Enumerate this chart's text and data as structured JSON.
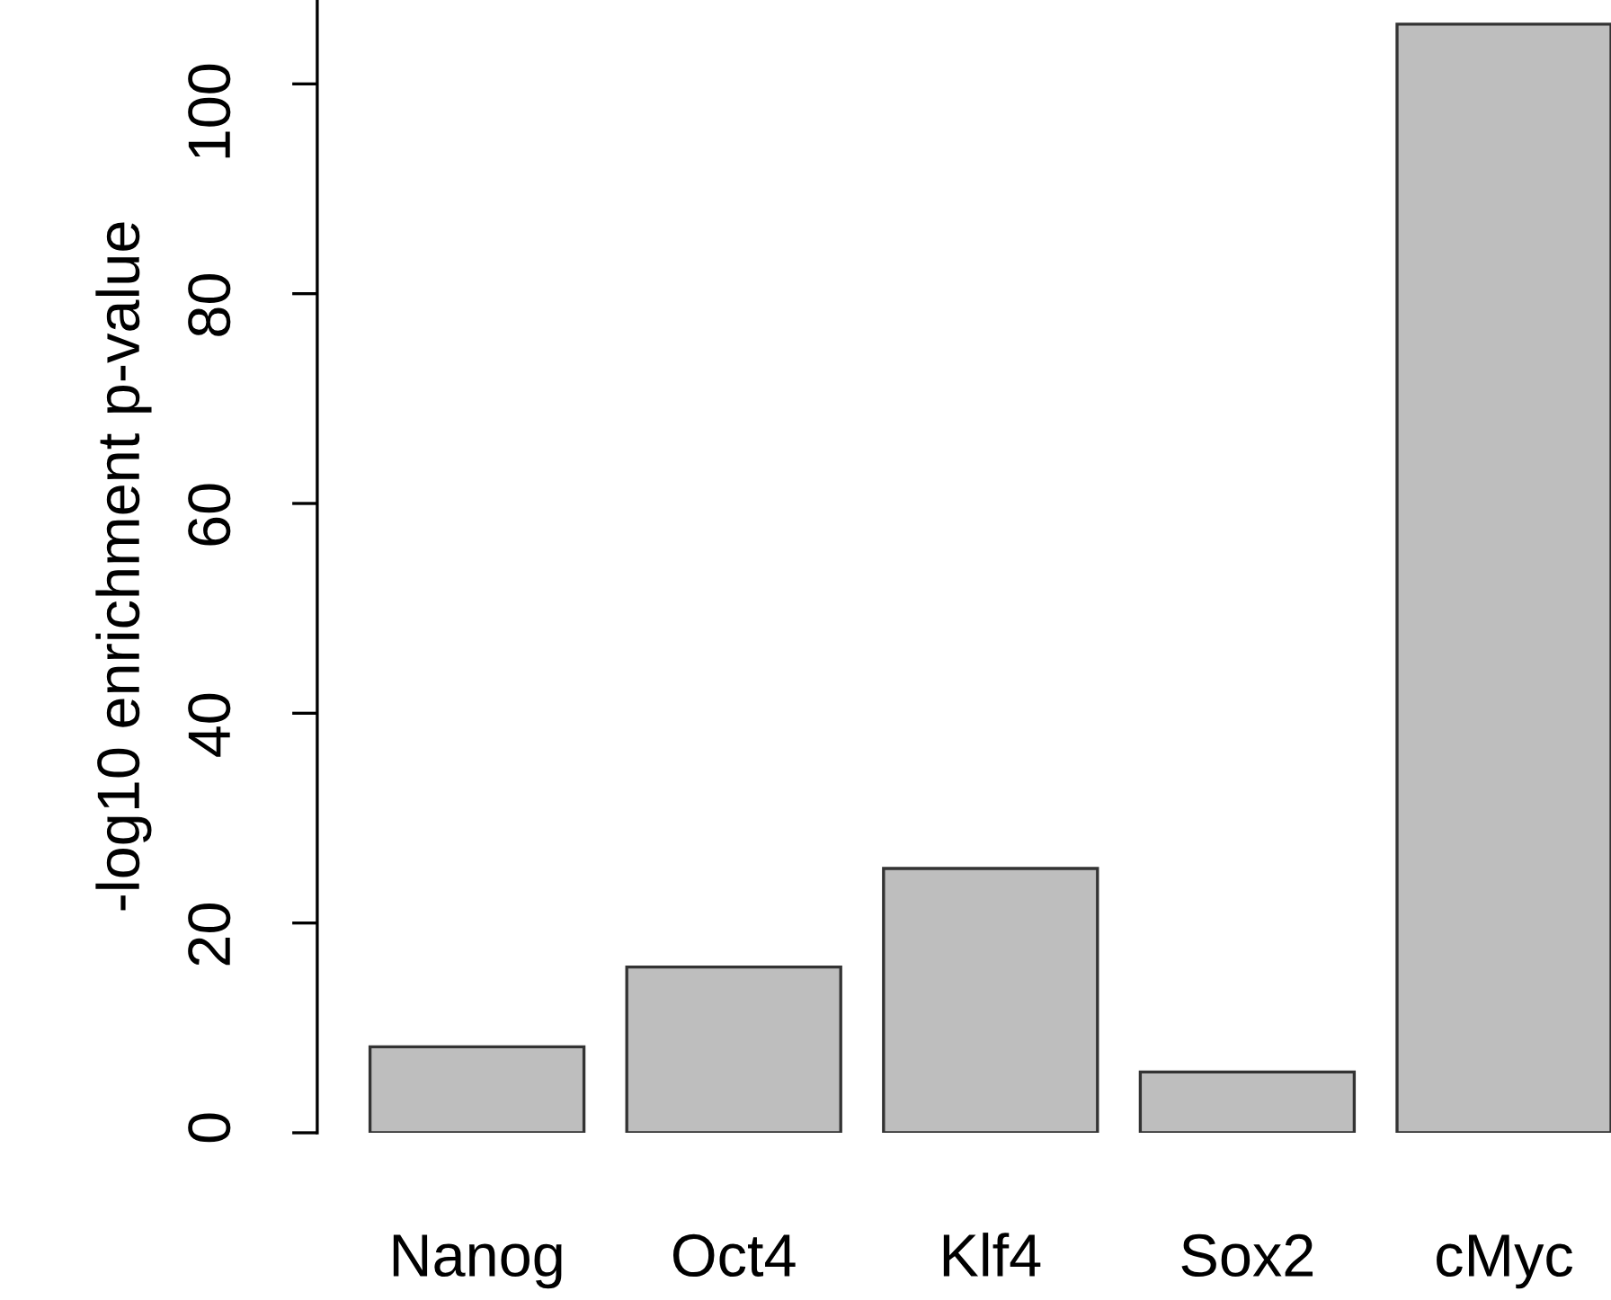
{
  "chart_data": {
    "type": "bar",
    "ylabel": "-log10 enrichment p-value",
    "categories": [
      "Nanog",
      "Oct4",
      "Klf4",
      "Sox2",
      "cMyc"
    ],
    "values": [
      8.2,
      15.8,
      25.2,
      5.8,
      105.7
    ],
    "color": "#bebebe",
    "ylim": [
      0,
      108
    ],
    "yticks": [
      0,
      20,
      40,
      60,
      80,
      100
    ],
    "grid": false
  }
}
